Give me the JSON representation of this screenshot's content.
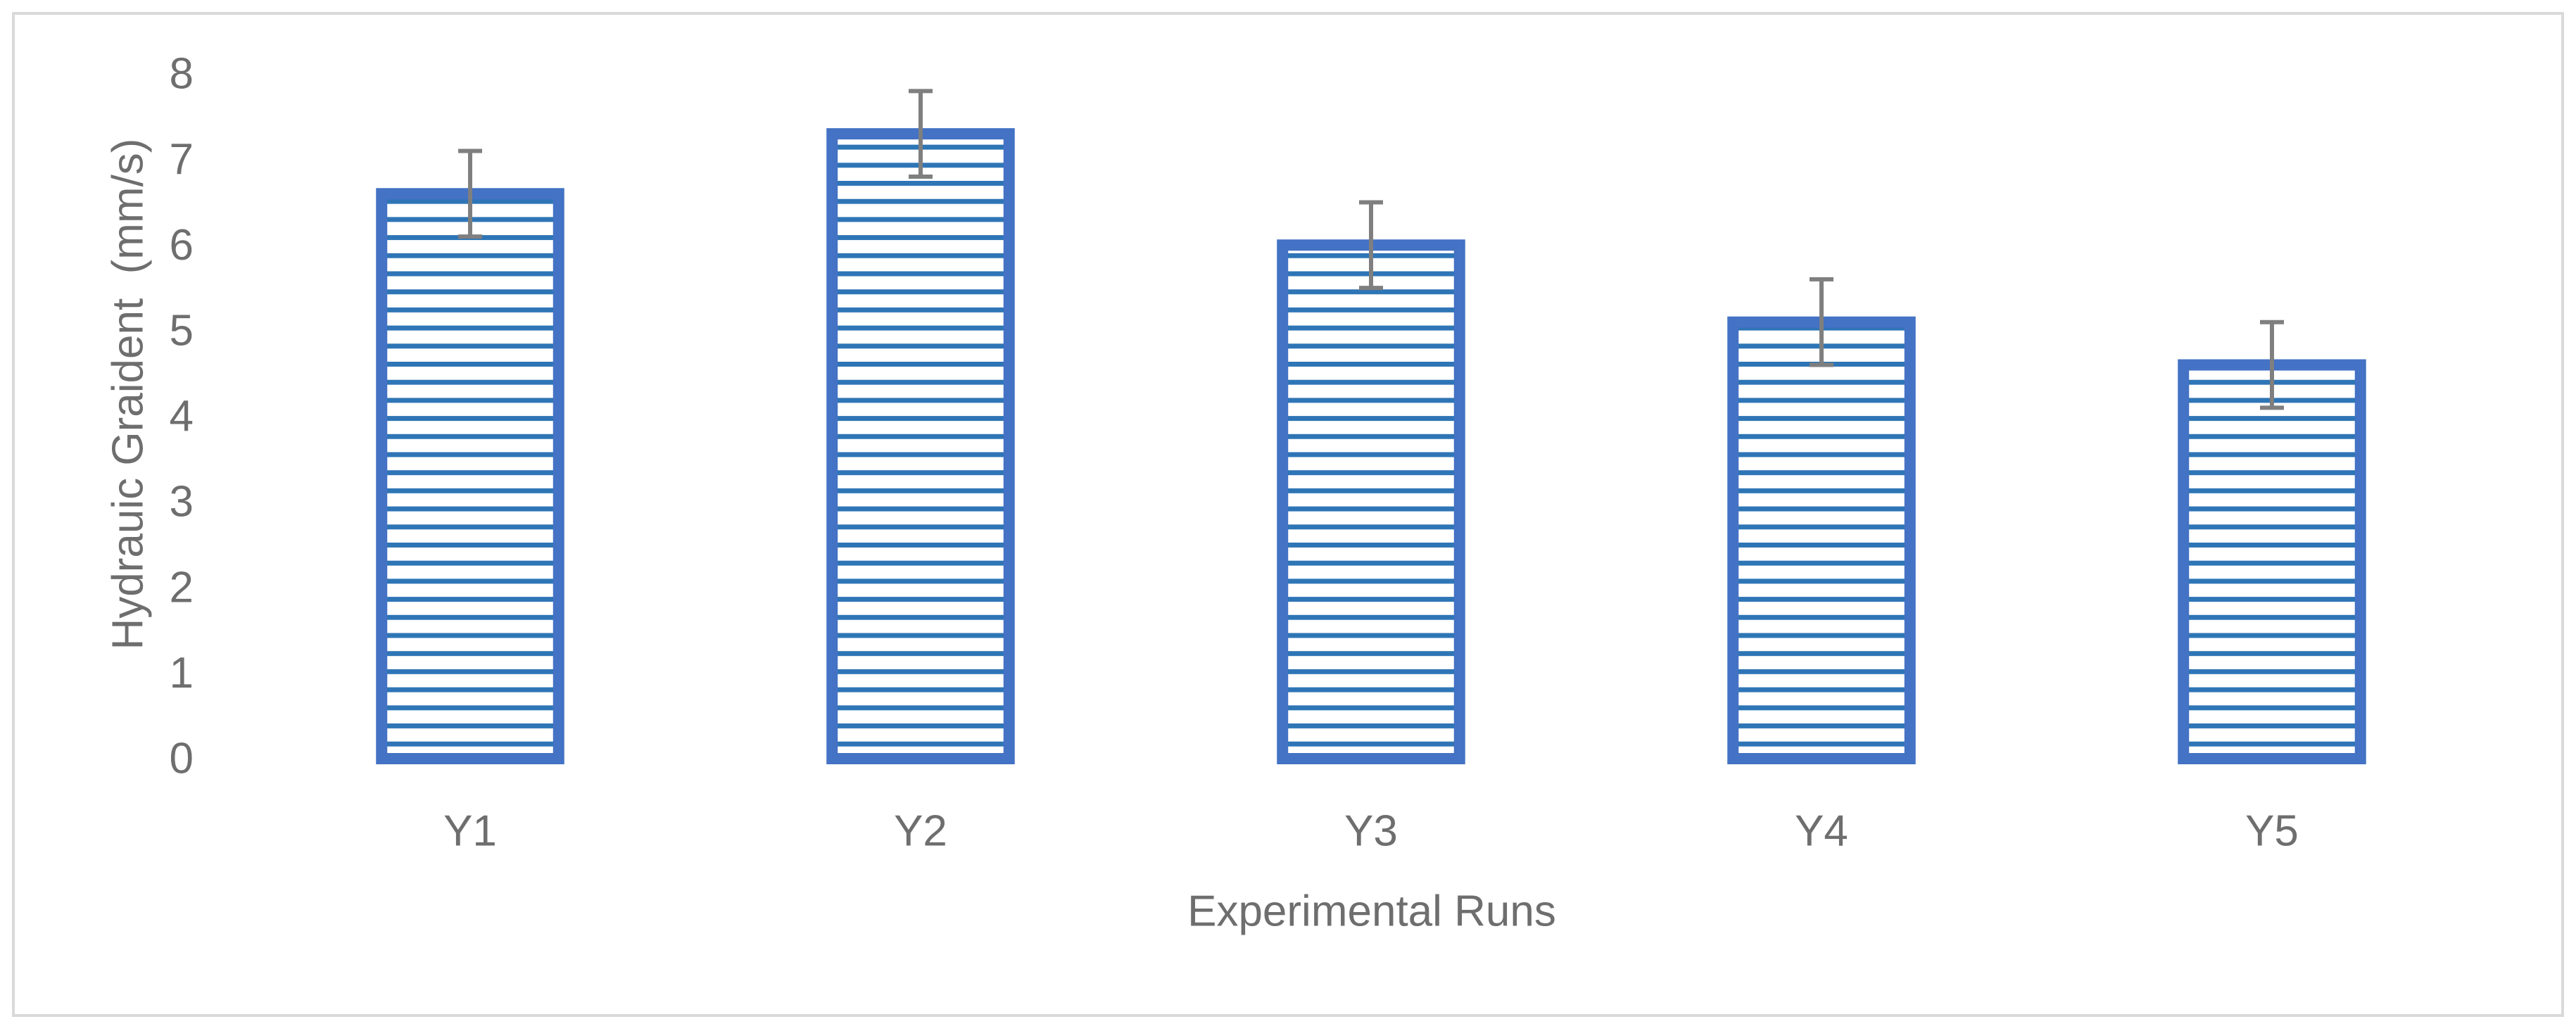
{
  "chart_data": {
    "type": "bar",
    "title": "",
    "categories": [
      "Y1",
      "Y2",
      "Y3",
      "Y4",
      "Y5"
    ],
    "series": [
      {
        "values": [
          6.6,
          7.3,
          6.0,
          5.1,
          4.6
        ],
        "error": [
          0.5,
          0.5,
          0.5,
          0.5,
          0.5
        ]
      }
    ],
    "xlabel": "Experimental Runs",
    "ylabel": "Hydrauic Graident  (mm/s)",
    "ylim": [
      0,
      8
    ],
    "yticks": [
      0,
      1,
      2,
      3,
      4,
      5,
      6,
      7,
      8
    ],
    "grid": false,
    "legend": "none",
    "bar_fill": "horizontal-stripes"
  },
  "colors": {
    "bar_border": "#4472C4",
    "bar_stripe": "#2E75B6",
    "bar_background": "#FFFFFF",
    "error_bar": "#7F7F7F",
    "text": "#6E6E6E",
    "frame": "#D9D9D9"
  }
}
